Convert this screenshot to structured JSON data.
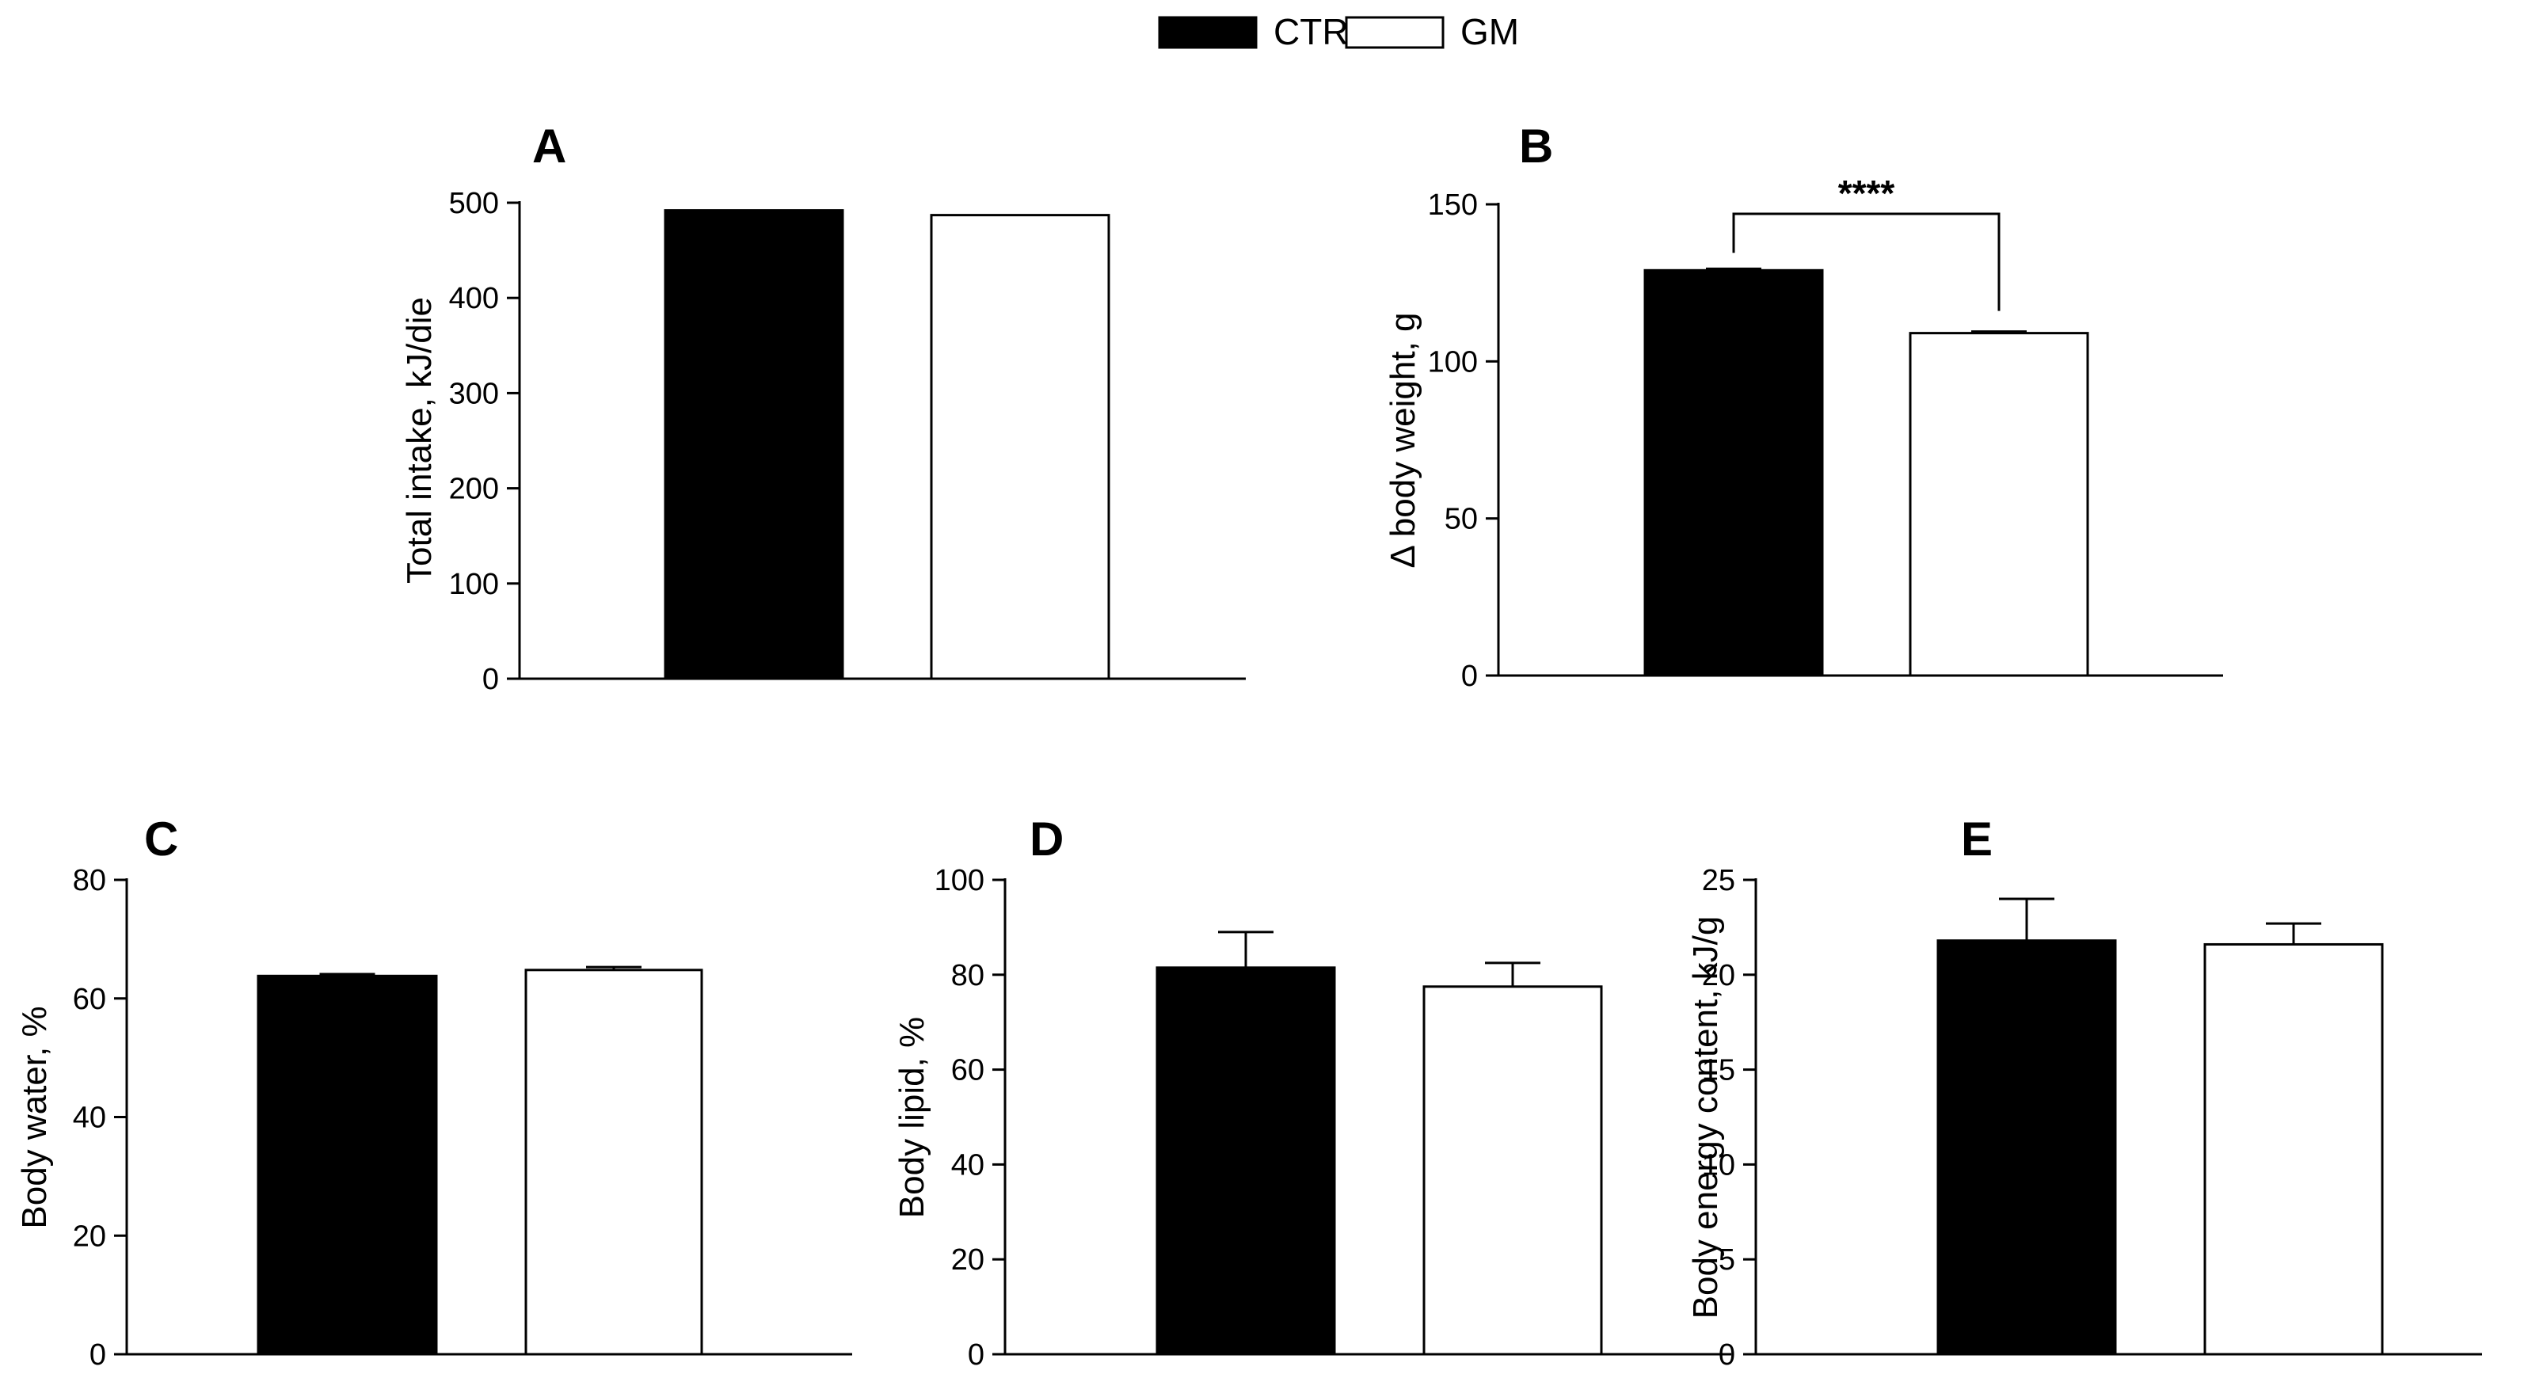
{
  "legend": {
    "entries": [
      {
        "name": "CTR",
        "color": "#000000"
      },
      {
        "name": "GM",
        "color": "#ffffff"
      }
    ]
  },
  "chart_data": [
    {
      "panel": "A",
      "type": "bar",
      "categories": [
        "CTR",
        "GM"
      ],
      "values": [
        492,
        487
      ],
      "errors": [
        0,
        0
      ],
      "ylabel": "Total intake, kJ/die",
      "ylim": [
        0,
        500
      ],
      "yticks": [
        0,
        100,
        200,
        300,
        400,
        500
      ],
      "significance": null
    },
    {
      "panel": "B",
      "type": "bar",
      "categories": [
        "CTR",
        "GM"
      ],
      "values": [
        129,
        109
      ],
      "errors": [
        0.5,
        0.5
      ],
      "ylabel": "Δ body weight, g",
      "ylim": [
        0,
        150
      ],
      "yticks": [
        0,
        50,
        100,
        150
      ],
      "significance": {
        "label": "****",
        "level": 149
      }
    },
    {
      "panel": "C",
      "type": "bar",
      "categories": [
        "CTR",
        "GM"
      ],
      "values": [
        63.8,
        64.8
      ],
      "errors": [
        0.3,
        0.5
      ],
      "ylabel": "Body water, %",
      "ylim": [
        0,
        80
      ],
      "yticks": [
        0,
        20,
        40,
        60,
        80
      ],
      "significance": null
    },
    {
      "panel": "D",
      "type": "bar",
      "categories": [
        "CTR",
        "GM"
      ],
      "values": [
        81.5,
        77.5
      ],
      "errors": [
        7.5,
        5
      ],
      "ylabel": "Body lipid, %",
      "ylim": [
        0,
        100
      ],
      "yticks": [
        0,
        20,
        40,
        60,
        80,
        100
      ],
      "significance": null
    },
    {
      "panel": "E",
      "type": "bar",
      "categories": [
        "CTR",
        "GM"
      ],
      "values": [
        21.8,
        21.6
      ],
      "errors": [
        2.2,
        1.1
      ],
      "ylabel": "Body energy content, kJ/g",
      "ylim": [
        0,
        25
      ],
      "yticks": [
        0,
        5,
        10,
        15,
        20,
        25
      ],
      "significance": null
    }
  ]
}
